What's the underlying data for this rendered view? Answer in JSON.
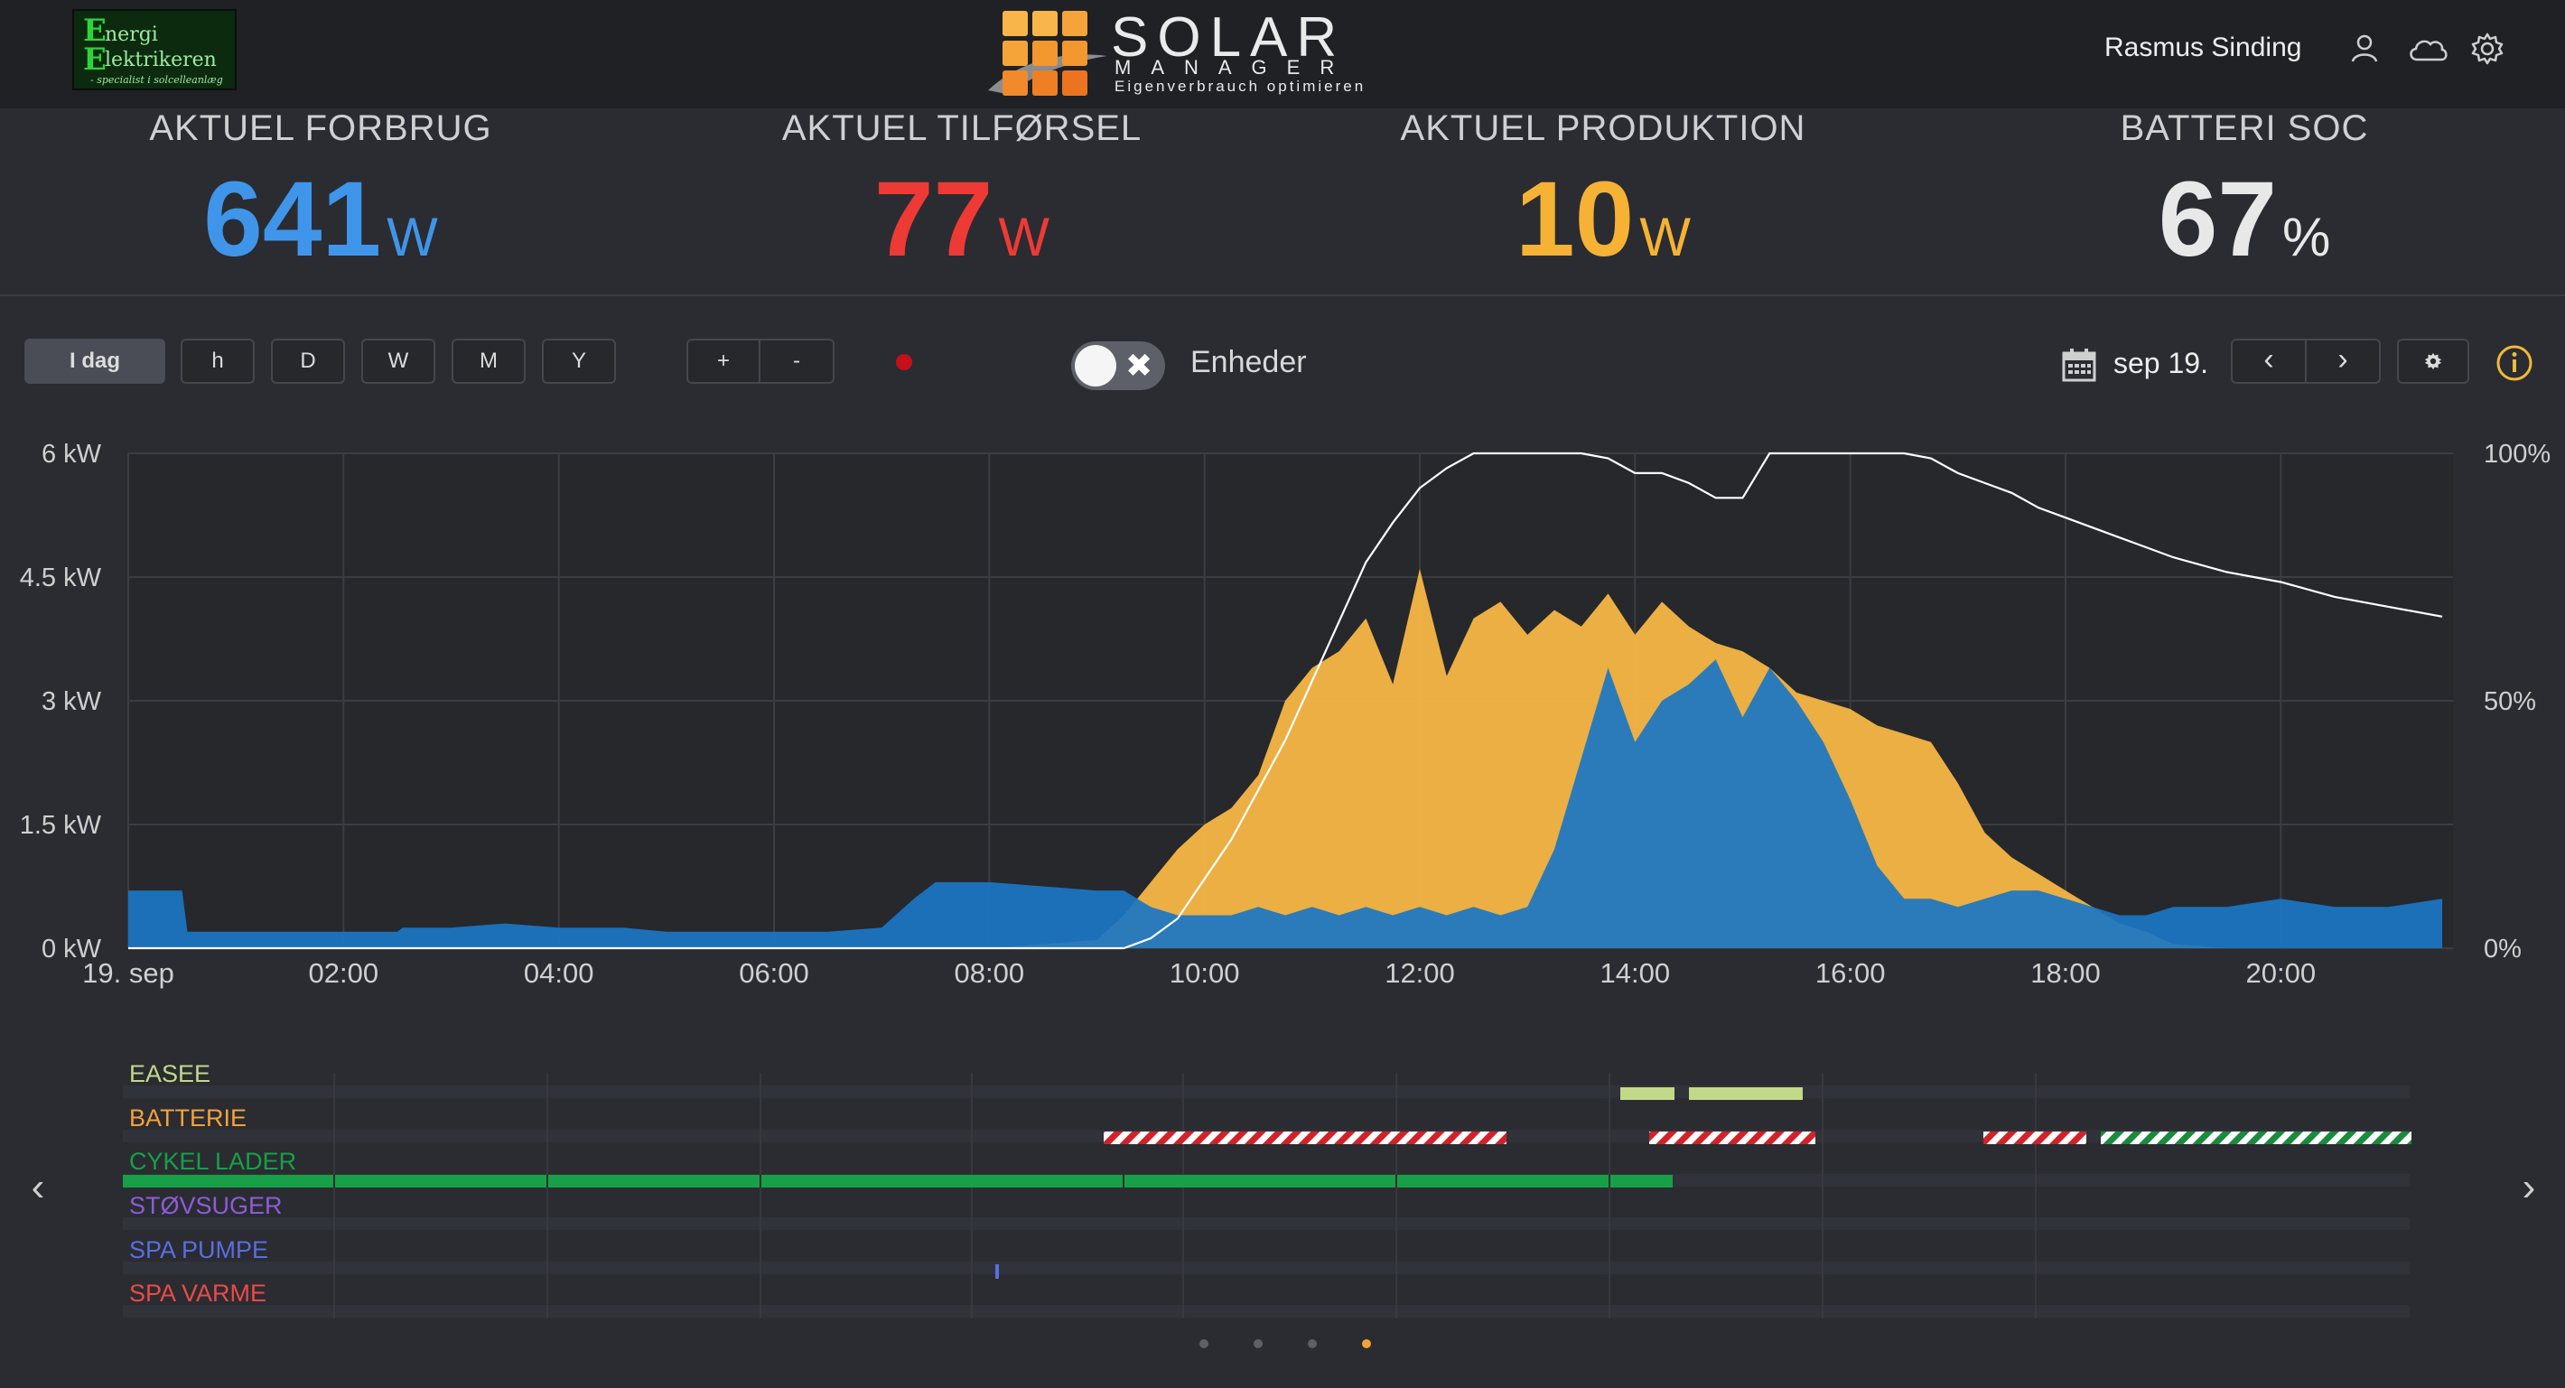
{
  "header": {
    "partner_logo": {
      "line1_big": "E",
      "line1_rest": "nergi",
      "line2_big": "E",
      "line2_rest": "lektrikeren",
      "tagline": "- specialist i solcelleanlæg"
    },
    "brand": {
      "name": "SOLAR",
      "sub": "MANAGER",
      "tagline": "Eigenverbrauch optimieren",
      "accent": "#f4a23a"
    },
    "user_name": "Rasmus Sinding",
    "icons": [
      "user-icon",
      "cloud-icon",
      "settings-gear-icon"
    ]
  },
  "stats": [
    {
      "label": "AKTUEL FORBRUG",
      "value": "641",
      "unit": "W",
      "color": "#3f95ea"
    },
    {
      "label": "AKTUEL TILFØRSEL",
      "value": "77",
      "unit": "W",
      "color": "#ee3a35"
    },
    {
      "label": "AKTUEL PRODUKTION",
      "value": "10",
      "unit": "W",
      "color": "#f5b234"
    },
    {
      "label": "BATTERI SOC",
      "value": "67",
      "unit": "%",
      "color": "#e8e8e8"
    }
  ],
  "toolbar": {
    "ranges": [
      {
        "label": "I dag",
        "active": true
      },
      {
        "label": "h",
        "active": false
      },
      {
        "label": "D",
        "active": false
      },
      {
        "label": "W",
        "active": false
      },
      {
        "label": "M",
        "active": false
      },
      {
        "label": "Y",
        "active": false
      }
    ],
    "zoom_in": "+",
    "zoom_out": "-",
    "toggle_label": "Enheder",
    "toggle_state": "off",
    "date_label": "sep 19.",
    "prev": "‹",
    "next": "›",
    "settings_icon": "gear-small-icon",
    "info_icon": "info-icon"
  },
  "chart_data": {
    "type": "area",
    "x_labels": [
      "19. sep",
      "02:00",
      "04:00",
      "06:00",
      "08:00",
      "10:00",
      "12:00",
      "14:00",
      "16:00",
      "18:00",
      "20:00"
    ],
    "y_left_labels": [
      "6 kW",
      "4.5 kW",
      "3 kW",
      "1.5 kW",
      "0 kW"
    ],
    "y_right_labels": [
      "100%",
      "50%",
      "0%"
    ],
    "ylim_kw": [
      0,
      6
    ],
    "ylim_soc": [
      0,
      100
    ],
    "grid": true,
    "hours": [
      0.0,
      0.5,
      0.55,
      1.0,
      1.5,
      2.0,
      2.5,
      2.55,
      3.0,
      3.5,
      4.0,
      4.5,
      4.6,
      5.0,
      5.5,
      6.0,
      6.5,
      7.0,
      7.3,
      7.5,
      8.0,
      8.5,
      9.0,
      9.25,
      9.5,
      9.75,
      10.0,
      10.25,
      10.5,
      10.75,
      11.0,
      11.25,
      11.5,
      11.75,
      12.0,
      12.25,
      12.5,
      12.75,
      13.0,
      13.25,
      13.5,
      13.75,
      14.0,
      14.25,
      14.5,
      14.75,
      15.0,
      15.25,
      15.5,
      15.75,
      16.0,
      16.25,
      16.5,
      16.75,
      17.0,
      17.25,
      17.5,
      17.75,
      18.0,
      18.25,
      18.5,
      18.75,
      19.0,
      19.5,
      20.0,
      20.5,
      21.0,
      21.5
    ],
    "series": [
      {
        "name": "",
        "color": "#f5b645",
        "values": [
          0.0,
          0.0,
          0.0,
          0.0,
          0.0,
          0.0,
          0.0,
          0.0,
          0.0,
          0.0,
          0.0,
          0.0,
          0.0,
          0.0,
          0.0,
          0.0,
          0.0,
          0.0,
          0.0,
          0.0,
          0.0,
          0.05,
          0.1,
          0.4,
          0.8,
          1.2,
          1.5,
          1.7,
          2.1,
          3.0,
          3.4,
          3.6,
          4.0,
          3.2,
          4.6,
          3.3,
          4.0,
          4.2,
          3.8,
          4.1,
          3.9,
          4.3,
          3.8,
          4.2,
          3.9,
          3.7,
          3.6,
          3.4,
          3.1,
          3.0,
          2.9,
          2.7,
          2.6,
          2.5,
          2.0,
          1.4,
          1.1,
          0.9,
          0.7,
          0.5,
          0.3,
          0.2,
          0.05,
          0.0,
          0.0,
          0.0,
          0.0,
          0.0
        ]
      },
      {
        "name": "",
        "color": "#1a76c4",
        "values": [
          0.7,
          0.7,
          0.2,
          0.2,
          0.2,
          0.2,
          0.2,
          0.25,
          0.25,
          0.3,
          0.25,
          0.25,
          0.25,
          0.2,
          0.2,
          0.2,
          0.2,
          0.25,
          0.6,
          0.8,
          0.8,
          0.75,
          0.7,
          0.7,
          0.5,
          0.4,
          0.4,
          0.4,
          0.5,
          0.4,
          0.5,
          0.4,
          0.5,
          0.4,
          0.5,
          0.4,
          0.5,
          0.4,
          0.5,
          1.2,
          2.3,
          3.4,
          2.5,
          3.0,
          3.2,
          3.5,
          2.8,
          3.4,
          3.0,
          2.5,
          1.8,
          1.0,
          0.6,
          0.6,
          0.5,
          0.6,
          0.7,
          0.7,
          0.6,
          0.5,
          0.4,
          0.4,
          0.5,
          0.5,
          0.6,
          0.5,
          0.5,
          0.6
        ]
      },
      {
        "name": "",
        "color": "#ffffff",
        "values": [
          0,
          0,
          0,
          0,
          0,
          0,
          0,
          0,
          0,
          0,
          0,
          0,
          0,
          0,
          0,
          0,
          0,
          0,
          0,
          0,
          0,
          0,
          0,
          0,
          2,
          6,
          14,
          22,
          32,
          42,
          54,
          66,
          78,
          86,
          93,
          97,
          100,
          100,
          100,
          100,
          100,
          99,
          96,
          96,
          94,
          91,
          91,
          100,
          100,
          100,
          100,
          100,
          100,
          99,
          96,
          94,
          92,
          89,
          87,
          85,
          83,
          81,
          79,
          76,
          74,
          71,
          69,
          67
        ]
      }
    ]
  },
  "devices": {
    "labels": [
      {
        "label": "EASEE",
        "color": "#c2d98a"
      },
      {
        "label": "BATTERIE",
        "color": "#f4a23a"
      },
      {
        "label": "CYKEL LADER",
        "color": "#17a048"
      },
      {
        "label": "STØVSUGER",
        "color": "#8d5cd8"
      },
      {
        "label": "SPA PUMPE",
        "color": "#5a6ee0"
      },
      {
        "label": "SPA VARME",
        "color": "#ec4a48"
      }
    ],
    "nav_prev": "‹",
    "nav_next": "›"
  },
  "pager": {
    "count": 4,
    "active": 3,
    "active_color": "#f4a23a"
  }
}
